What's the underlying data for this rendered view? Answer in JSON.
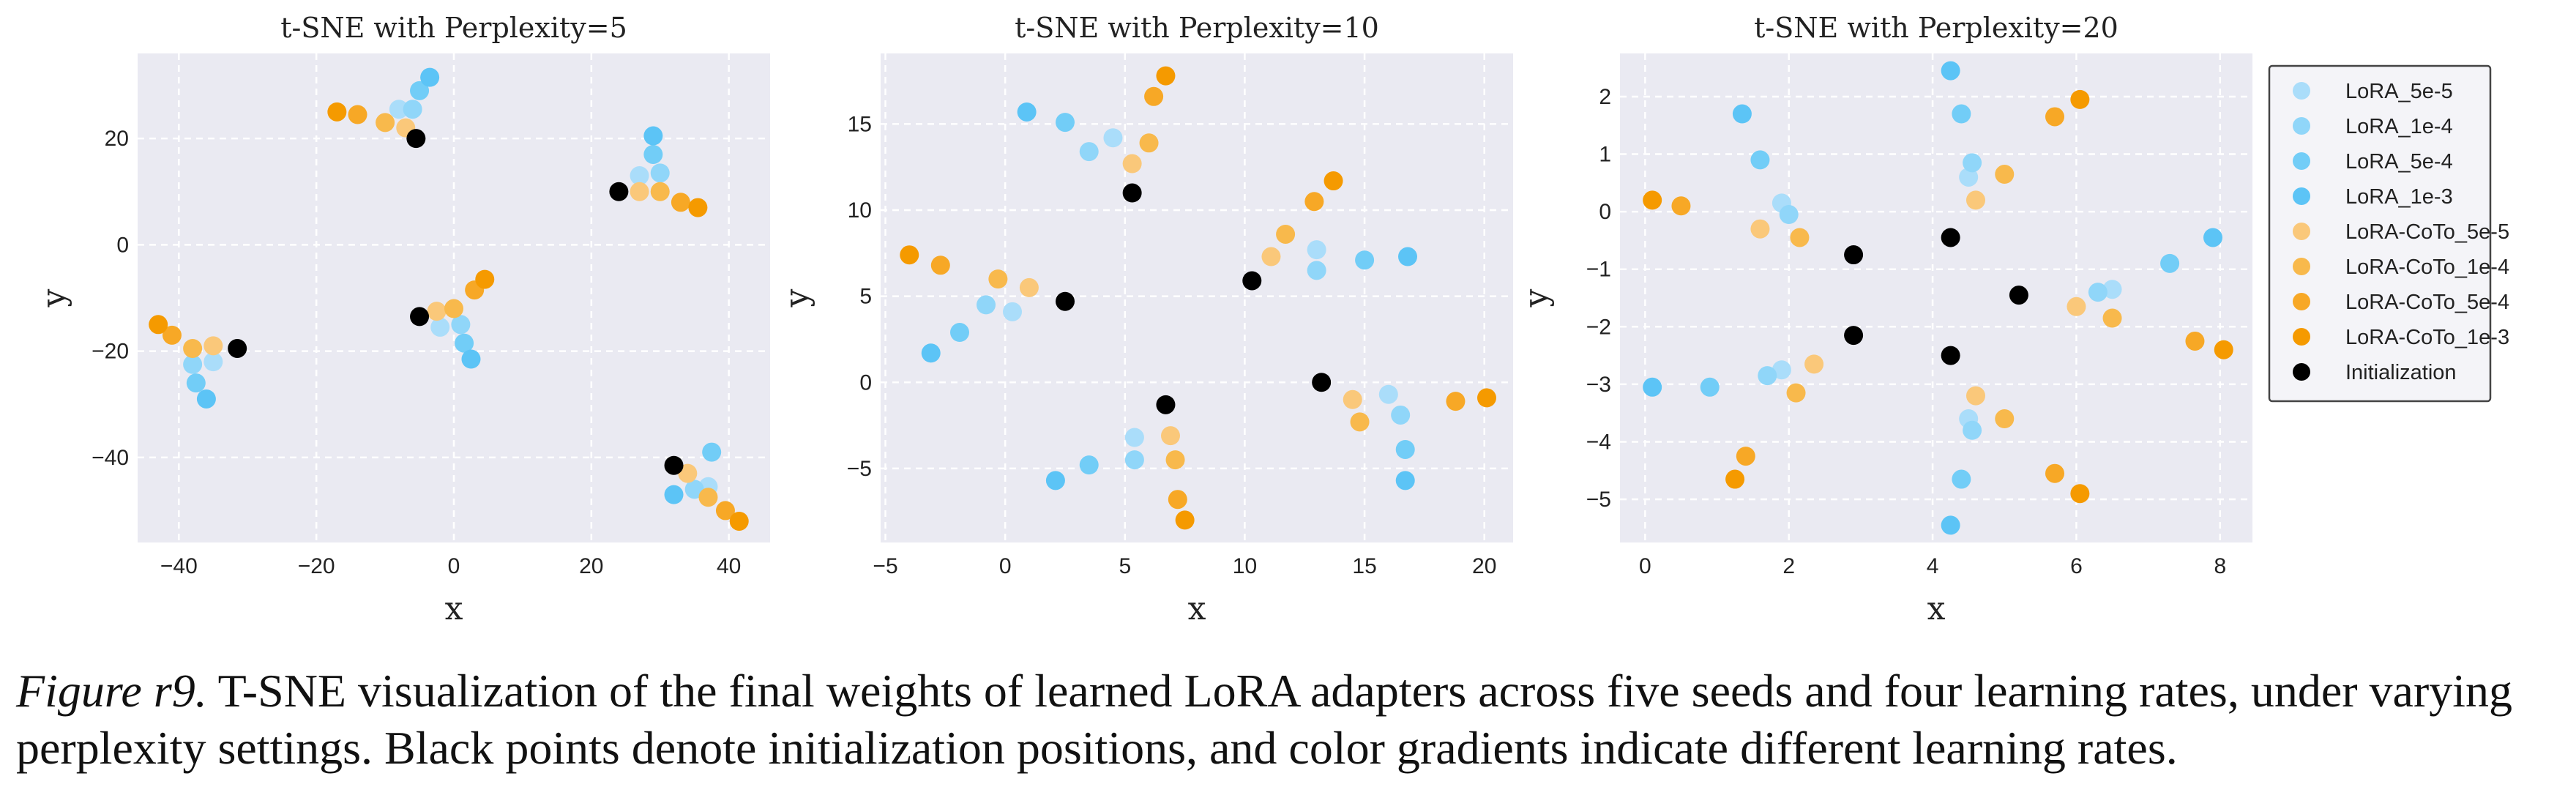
{
  "chart_data": [
    {
      "type": "scatter",
      "title": "t-SNE with Perplexity=5",
      "xlabel": "x",
      "ylabel": "y",
      "xlim": [
        -46,
        46
      ],
      "ylim": [
        -56,
        36
      ],
      "xticks": [
        -40,
        -20,
        0,
        20,
        40
      ],
      "yticks": [
        -40,
        -20,
        0,
        20
      ],
      "grid": true,
      "series": [
        {
          "name": "LoRA_5e-5",
          "points": [
            [
              -8,
              25.5
            ],
            [
              27,
              13
            ],
            [
              -35,
              -22
            ],
            [
              37,
              -45.5
            ],
            [
              -2,
              -15.5
            ]
          ]
        },
        {
          "name": "LoRA_1e-4",
          "points": [
            [
              -6,
              25.5
            ],
            [
              30,
              13.5
            ],
            [
              -38,
              -22.5
            ],
            [
              35,
              -46
            ],
            [
              1,
              -15
            ]
          ]
        },
        {
          "name": "LoRA_5e-4",
          "points": [
            [
              -5,
              29
            ],
            [
              29,
              17
            ],
            [
              -37.5,
              -26
            ],
            [
              37.5,
              -39
            ],
            [
              1.5,
              -18.5
            ]
          ]
        },
        {
          "name": "LoRA_1e-3",
          "points": [
            [
              -3.5,
              31.5
            ],
            [
              29,
              20.5
            ],
            [
              -36,
              -29
            ],
            [
              32,
              -47
            ],
            [
              2.5,
              -21.5
            ]
          ]
        },
        {
          "name": "LoRA-CoTo_5e-5",
          "points": [
            [
              -7,
              22
            ],
            [
              27,
              10
            ],
            [
              -35,
              -19
            ],
            [
              34,
              -43
            ],
            [
              -2.5,
              -12.5
            ]
          ]
        },
        {
          "name": "LoRA-CoTo_1e-4",
          "points": [
            [
              -10,
              23
            ],
            [
              30,
              10
            ],
            [
              -38,
              -19.5
            ],
            [
              37,
              -47.5
            ],
            [
              0,
              -12
            ]
          ]
        },
        {
          "name": "LoRA-CoTo_5e-4",
          "points": [
            [
              -14,
              24.5
            ],
            [
              33,
              8
            ],
            [
              -41,
              -17
            ],
            [
              39.5,
              -50
            ],
            [
              3,
              -8.5
            ]
          ]
        },
        {
          "name": "LoRA-CoTo_1e-3",
          "points": [
            [
              -17,
              25
            ],
            [
              35.5,
              7
            ],
            [
              -43,
              -15
            ],
            [
              41.5,
              -52
            ],
            [
              4.5,
              -6.5
            ]
          ]
        },
        {
          "name": "Initialization",
          "points": [
            [
              -5.5,
              20
            ],
            [
              24,
              10
            ],
            [
              -31.5,
              -19.5
            ],
            [
              32,
              -41.5
            ],
            [
              -5,
              -13.5
            ]
          ]
        }
      ]
    },
    {
      "type": "scatter",
      "title": "t-SNE with Perplexity=10",
      "xlabel": "x",
      "ylabel": "y",
      "xlim": [
        -5.2,
        21.2
      ],
      "ylim": [
        -9.3,
        19.1
      ],
      "xticks": [
        -5,
        0,
        5,
        10,
        15,
        20
      ],
      "yticks": [
        -5,
        0,
        5,
        10,
        15
      ],
      "grid": true,
      "series": [
        {
          "name": "LoRA_5e-5",
          "points": [
            [
              4.5,
              14.2
            ],
            [
              13,
              7.7
            ],
            [
              0.3,
              4.1
            ],
            [
              5.4,
              -3.2
            ],
            [
              16,
              -0.7
            ]
          ]
        },
        {
          "name": "LoRA_1e-4",
          "points": [
            [
              3.5,
              13.4
            ],
            [
              13,
              6.5
            ],
            [
              -0.8,
              4.5
            ],
            [
              5.4,
              -4.5
            ],
            [
              16.5,
              -1.9
            ]
          ]
        },
        {
          "name": "LoRA_5e-4",
          "points": [
            [
              2.5,
              15.1
            ],
            [
              15,
              7.1
            ],
            [
              -1.9,
              2.9
            ],
            [
              3.5,
              -4.8
            ],
            [
              16.7,
              -3.9
            ]
          ]
        },
        {
          "name": "LoRA_1e-3",
          "points": [
            [
              0.9,
              15.7
            ],
            [
              16.8,
              7.3
            ],
            [
              -3.1,
              1.7
            ],
            [
              2.1,
              -5.7
            ],
            [
              16.7,
              -5.7
            ]
          ]
        },
        {
          "name": "LoRA-CoTo_5e-5",
          "points": [
            [
              5.3,
              12.7
            ],
            [
              11.1,
              7.3
            ],
            [
              1.0,
              5.5
            ],
            [
              6.9,
              -3.1
            ],
            [
              14.5,
              -1.0
            ]
          ]
        },
        {
          "name": "LoRA-CoTo_1e-4",
          "points": [
            [
              6.0,
              13.9
            ],
            [
              11.7,
              8.6
            ],
            [
              -0.3,
              6.0
            ],
            [
              7.1,
              -4.5
            ],
            [
              14.8,
              -2.3
            ]
          ]
        },
        {
          "name": "LoRA-CoTo_5e-4",
          "points": [
            [
              6.2,
              16.6
            ],
            [
              12.9,
              10.5
            ],
            [
              -2.7,
              6.8
            ],
            [
              7.2,
              -6.8
            ],
            [
              18.8,
              -1.1
            ]
          ]
        },
        {
          "name": "LoRA-CoTo_1e-3",
          "points": [
            [
              6.7,
              17.8
            ],
            [
              13.7,
              11.7
            ],
            [
              -4.0,
              7.4
            ],
            [
              7.5,
              -8.0
            ],
            [
              20.1,
              -0.9
            ]
          ]
        },
        {
          "name": "Initialization",
          "points": [
            [
              5.3,
              11.0
            ],
            [
              10.3,
              5.9
            ],
            [
              2.5,
              4.7
            ],
            [
              6.7,
              -1.3
            ],
            [
              13.2,
              0.0
            ]
          ]
        }
      ]
    },
    {
      "type": "scatter",
      "title": "t-SNE with Perplexity=20",
      "xlabel": "x",
      "ylabel": "y",
      "xlim": [
        -0.35,
        8.45
      ],
      "ylim": [
        -5.75,
        2.75
      ],
      "xticks": [
        0,
        2,
        4,
        6,
        8
      ],
      "yticks": [
        -5,
        -4,
        -3,
        -2,
        -1,
        0,
        1,
        2
      ],
      "grid": true,
      "series": [
        {
          "name": "LoRA_5e-5",
          "points": [
            [
              4.5,
              0.6
            ],
            [
              1.9,
              0.15
            ],
            [
              6.5,
              -1.35
            ],
            [
              1.9,
              -2.75
            ],
            [
              4.5,
              -3.6
            ]
          ]
        },
        {
          "name": "LoRA_1e-4",
          "points": [
            [
              4.55,
              0.85
            ],
            [
              2.0,
              -0.05
            ],
            [
              6.3,
              -1.4
            ],
            [
              1.7,
              -2.85
            ],
            [
              4.55,
              -3.8
            ]
          ]
        },
        {
          "name": "LoRA_5e-4",
          "points": [
            [
              4.4,
              1.7
            ],
            [
              1.6,
              0.9
            ],
            [
              7.3,
              -0.9
            ],
            [
              0.9,
              -3.05
            ],
            [
              4.4,
              -4.65
            ]
          ]
        },
        {
          "name": "LoRA_1e-3",
          "points": [
            [
              4.25,
              2.45
            ],
            [
              1.35,
              1.7
            ],
            [
              7.9,
              -0.45
            ],
            [
              0.1,
              -3.05
            ],
            [
              4.25,
              -5.45
            ]
          ]
        },
        {
          "name": "LoRA-CoTo_5e-5",
          "points": [
            [
              4.6,
              0.2
            ],
            [
              1.6,
              -0.3
            ],
            [
              6.0,
              -1.65
            ],
            [
              2.35,
              -2.65
            ],
            [
              4.6,
              -3.2
            ]
          ]
        },
        {
          "name": "LoRA-CoTo_1e-4",
          "points": [
            [
              5.0,
              0.65
            ],
            [
              2.15,
              -0.45
            ],
            [
              6.5,
              -1.85
            ],
            [
              2.1,
              -3.15
            ],
            [
              5.0,
              -3.6
            ]
          ]
        },
        {
          "name": "LoRA-CoTo_5e-4",
          "points": [
            [
              5.7,
              1.65
            ],
            [
              0.5,
              0.1
            ],
            [
              7.65,
              -2.25
            ],
            [
              1.4,
              -4.25
            ],
            [
              5.7,
              -4.55
            ]
          ]
        },
        {
          "name": "LoRA-CoTo_1e-3",
          "points": [
            [
              6.05,
              1.95
            ],
            [
              0.1,
              0.2
            ],
            [
              8.05,
              -2.4
            ],
            [
              1.25,
              -4.65
            ],
            [
              6.05,
              -4.9
            ]
          ]
        },
        {
          "name": "Initialization",
          "points": [
            [
              4.25,
              -0.45
            ],
            [
              2.9,
              -0.75
            ],
            [
              5.2,
              -1.45
            ],
            [
              2.9,
              -2.15
            ],
            [
              4.25,
              -2.5
            ]
          ]
        }
      ]
    }
  ],
  "legend": {
    "placement": "right",
    "entries": [
      {
        "label": "LoRA_5e-5",
        "color": "#aaddfa"
      },
      {
        "label": "LoRA_1e-4",
        "color": "#90d6f9"
      },
      {
        "label": "LoRA_5e-4",
        "color": "#72cdf7"
      },
      {
        "label": "LoRA_1e-3",
        "color": "#5cc4f6"
      },
      {
        "label": "LoRA-CoTo_5e-5",
        "color": "#fac87a"
      },
      {
        "label": "LoRA-CoTo_1e-4",
        "color": "#f8b94c"
      },
      {
        "label": "LoRA-CoTo_5e-4",
        "color": "#f7a826"
      },
      {
        "label": "LoRA-CoTo_1e-3",
        "color": "#f59a00"
      },
      {
        "label": "Initialization",
        "color": "#000000"
      }
    ]
  },
  "caption": {
    "label": "Figure r9.",
    "text": " T-SNE visualization of the final weights of learned LoRA adapters across five seeds and four learning rates, under varying perplexity settings. Black points denote initialization positions, and color gradients indicate different learning rates."
  }
}
